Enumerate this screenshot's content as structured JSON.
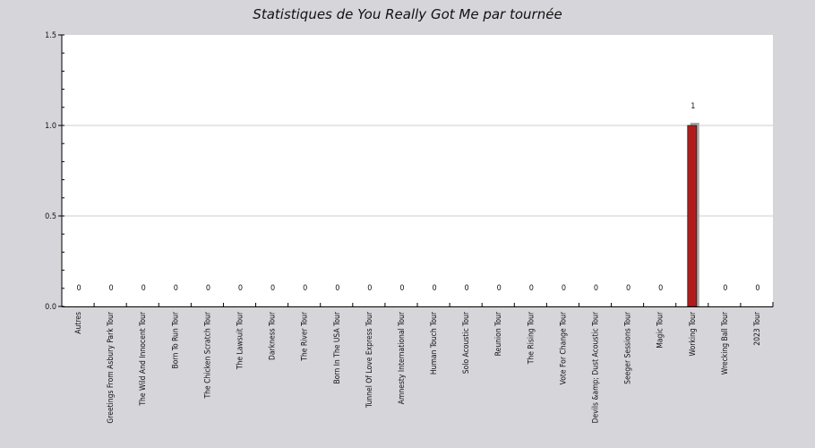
{
  "chart_data": {
    "type": "bar",
    "title": "Statistiques de You Really Got Me par tournée",
    "xlabel": "",
    "ylabel": "",
    "categories": [
      "Autres",
      "Greetings From Asbury Park Tour",
      "The Wild And Innocent Tour",
      "Born To Run Tour",
      "The Chicken Scratch Tour",
      "The Lawsuit Tour",
      "Darkness Tour",
      "The River Tour",
      "Born In The USA Tour",
      "Tunnel Of Love Express Tour",
      "Amnesty International Tour",
      "Human Touch Tour",
      "Solo Acoustic Tour",
      "Reunion Tour",
      "The Rising Tour",
      "Vote For Change Tour",
      "Devils &amp; Dust Acoustic Tour",
      "Seeger Sessions Tour",
      "Magic Tour",
      "Working Tour",
      "Wrecking Ball Tour",
      "2023 Tour"
    ],
    "values": [
      0,
      0,
      0,
      0,
      0,
      0,
      0,
      0,
      0,
      0,
      0,
      0,
      0,
      0,
      0,
      0,
      0,
      0,
      0,
      1,
      0,
      0
    ],
    "value_labels": [
      "0",
      "0",
      "0",
      "0",
      "0",
      "0",
      "0",
      "0",
      "0",
      "0",
      "0",
      "0",
      "0",
      "0",
      "0",
      "0",
      "0",
      "0",
      "0",
      "1",
      "0",
      "0"
    ],
    "ylim": [
      0,
      1.5
    ],
    "yticks": [
      0,
      0.5,
      1,
      1.5
    ],
    "ytick_labels": [
      "0.0",
      "0.5",
      "1.0",
      "1.5"
    ],
    "grid": true,
    "colors": {
      "bar": "#b01c1c",
      "bar_shadow": "#a8a8a8",
      "plot_background": "#ffffff",
      "page_background": "#d6d5da",
      "grid": "#cccccc"
    }
  }
}
